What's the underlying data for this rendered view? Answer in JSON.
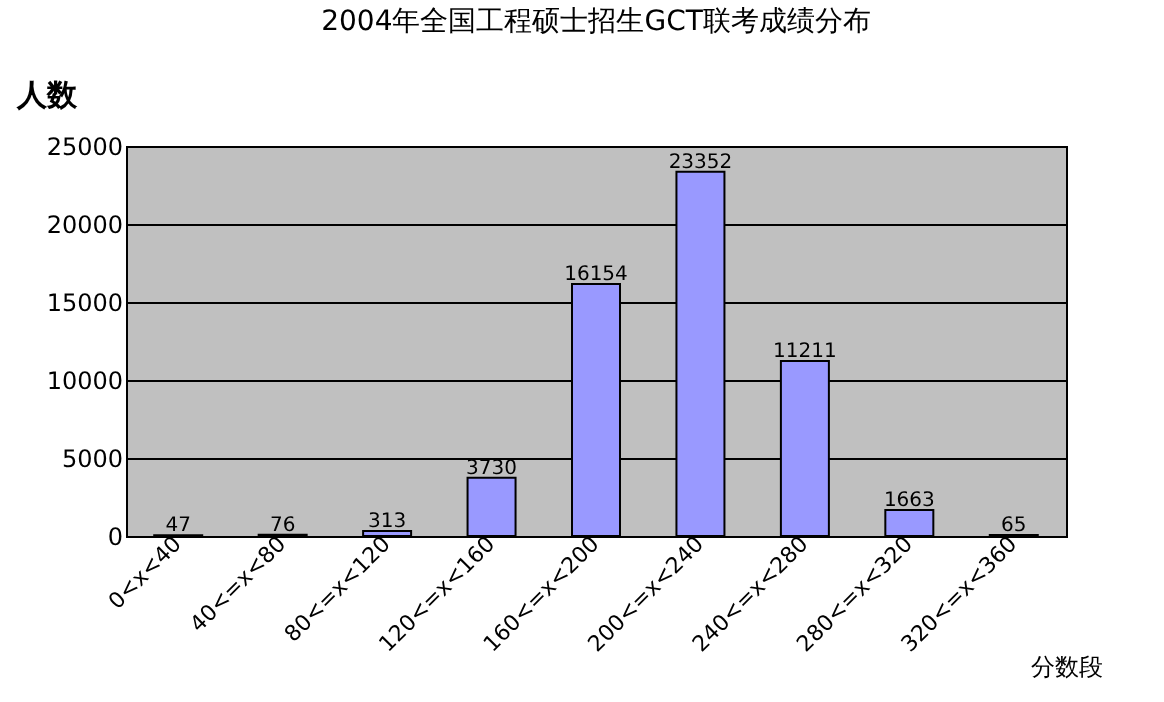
{
  "chart_data": {
    "type": "bar",
    "title": "2004年全国工程硕士招生GCT联考成绩分布",
    "ylabel": "人数",
    "xlabel": "分数段",
    "categories": [
      "0<x<40",
      "40<=x<80",
      "80<=x<120",
      "120<=x<160",
      "160<=x<200",
      "200<=x<240",
      "240<=x<280",
      "280<=x<320",
      "320<=x<360"
    ],
    "values": [
      47,
      76,
      313,
      3730,
      16154,
      23352,
      11211,
      1663,
      65
    ],
    "color": "#9999ff",
    "ylim": [
      0,
      25000
    ],
    "yticks": [
      0,
      5000,
      10000,
      15000,
      20000,
      25000
    ],
    "grid": "y",
    "data_labels": true
  }
}
